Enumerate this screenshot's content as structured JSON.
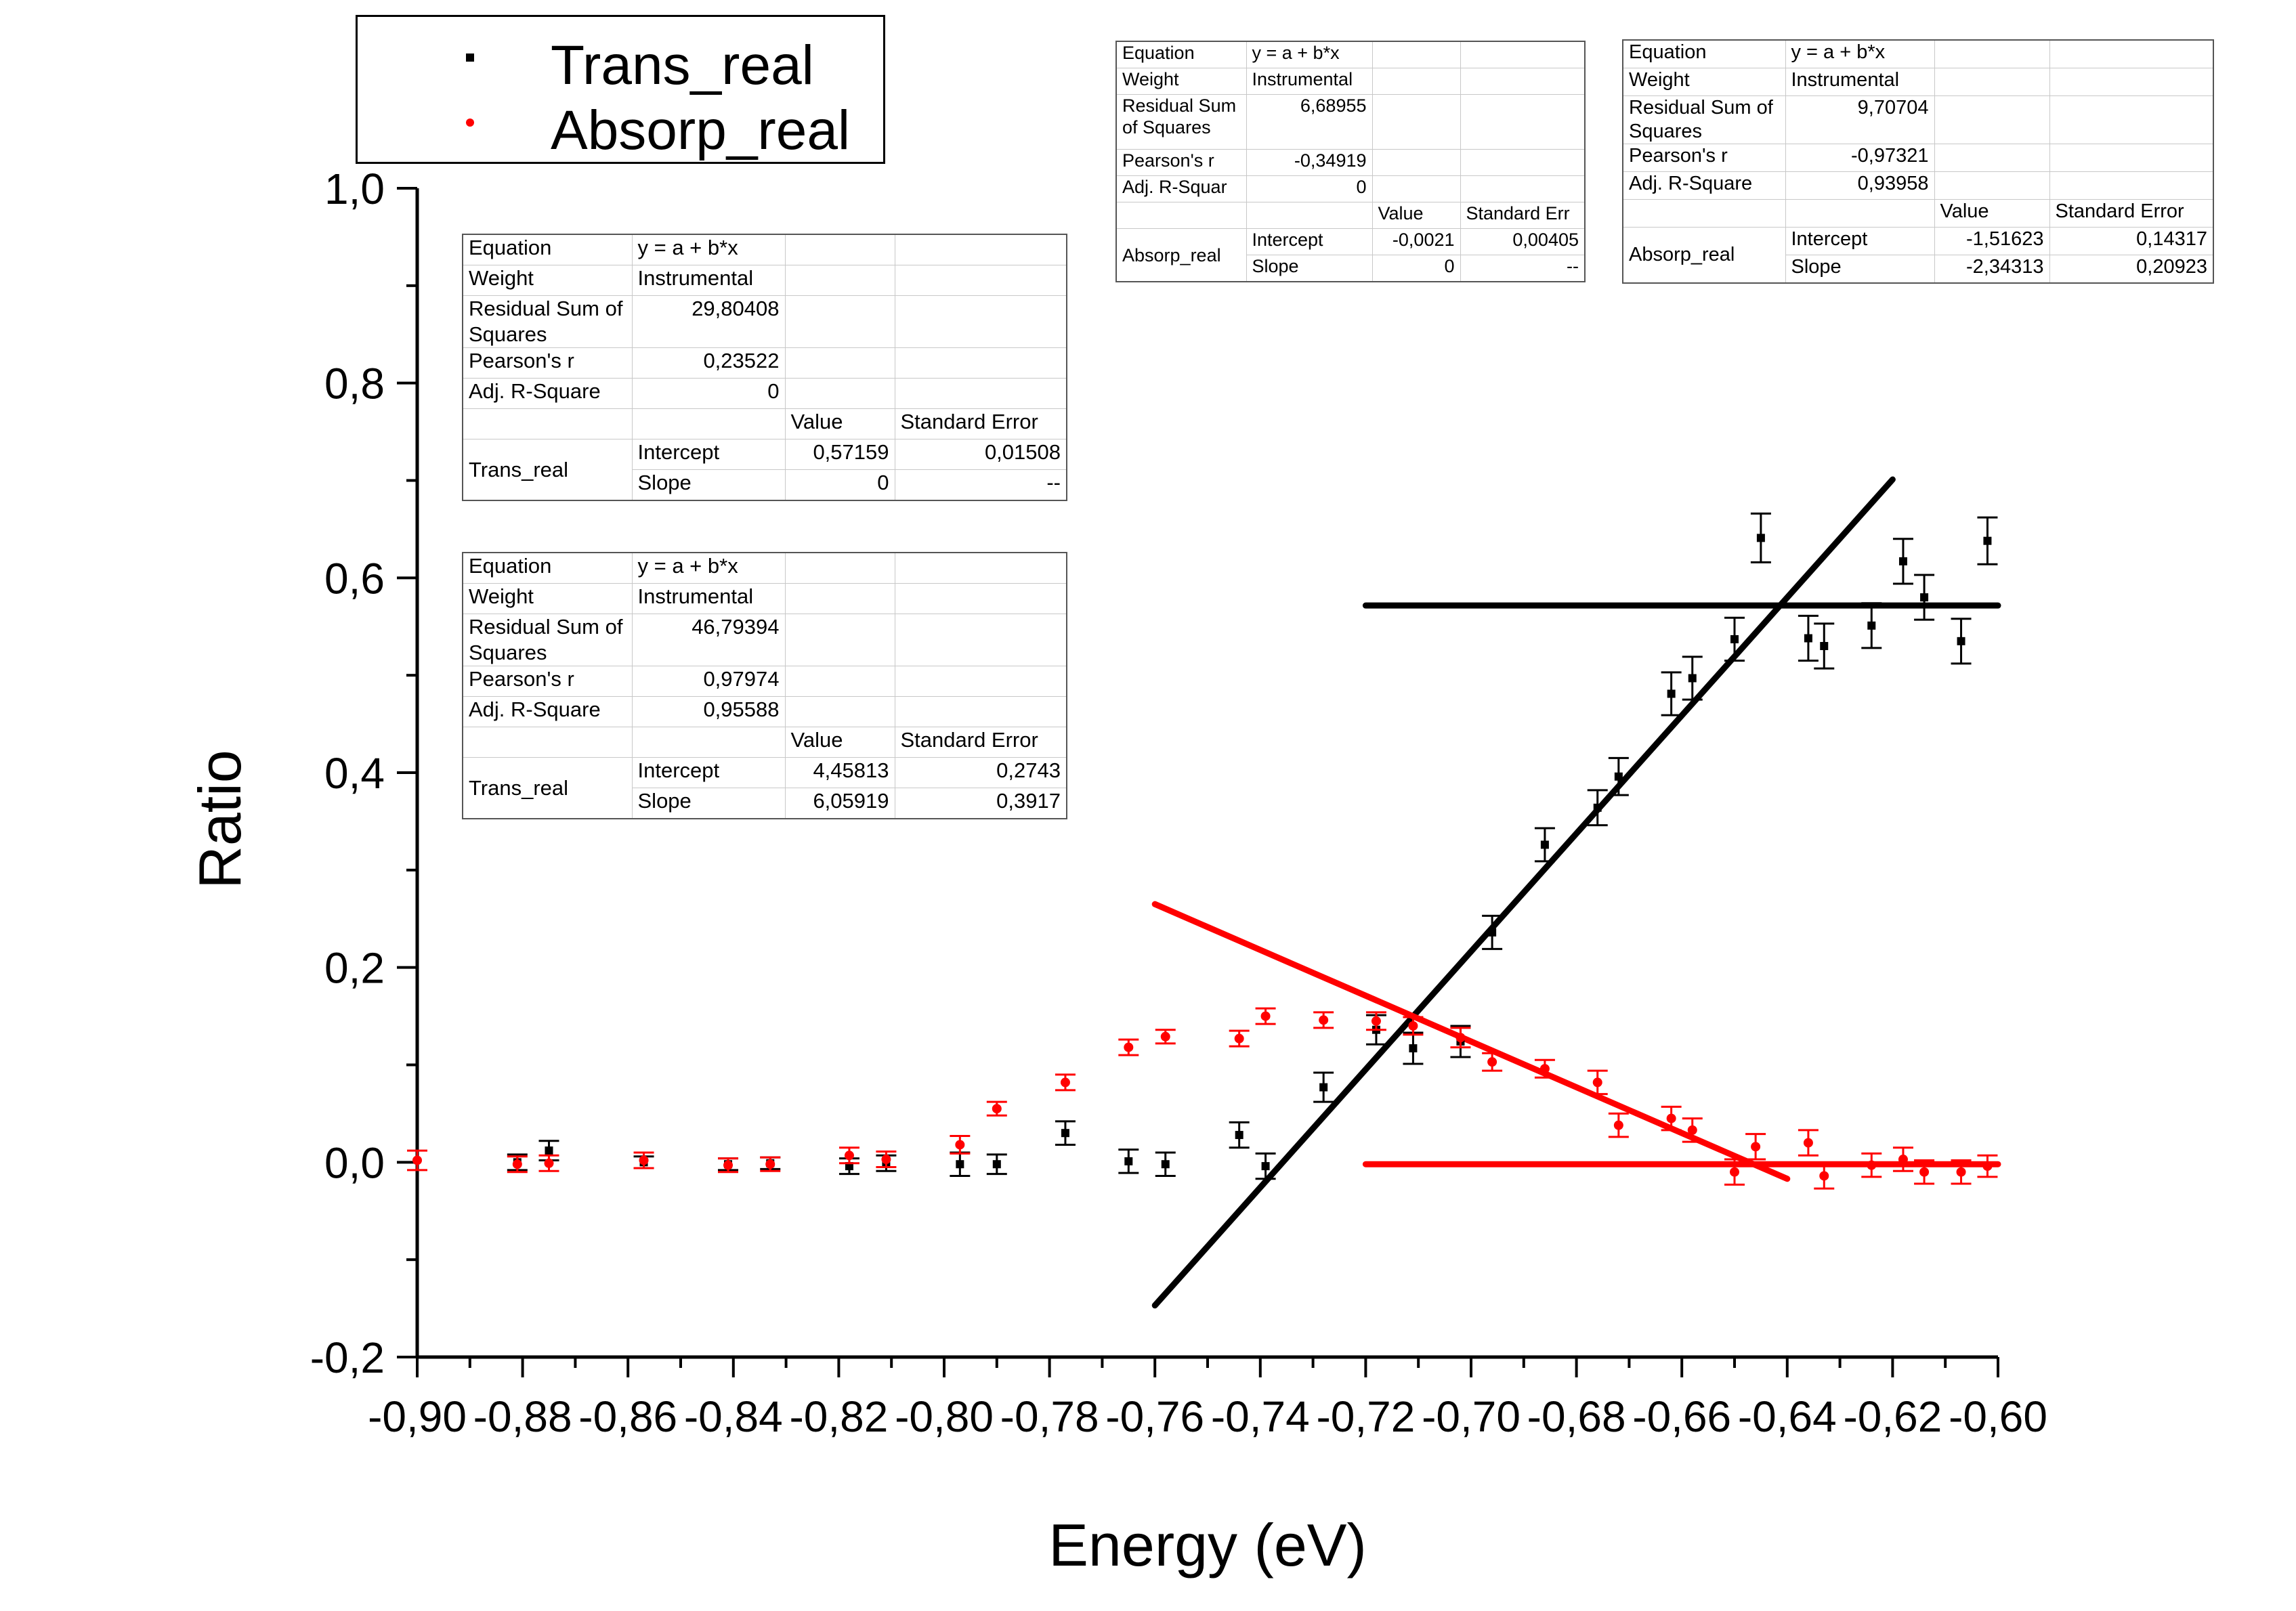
{
  "chart_data": {
    "type": "scatter",
    "title": "",
    "xlabel": "Energy (eV)",
    "ylabel": "Ratio",
    "xlim": [
      -0.9,
      -0.6
    ],
    "ylim": [
      -0.2,
      1.0
    ],
    "grid": false,
    "legend_position": "top-left",
    "x_tick_labels": [
      "-0,90",
      "-0,88",
      "-0,86",
      "-0,84",
      "-0,82",
      "-0,80",
      "-0,78",
      "-0,76",
      "-0,74",
      "-0,72",
      "-0,70",
      "-0,68",
      "-0,66",
      "-0,64",
      "-0,62",
      "-0,60"
    ],
    "y_tick_labels": [
      "-0,2",
      "0,0",
      "0,2",
      "0,4",
      "0,6",
      "0,8",
      "1,0"
    ],
    "series": [
      {
        "name": "Trans_real",
        "color": "#000000",
        "marker": "square",
        "points": [
          {
            "x": -0.881,
            "y": 0.0,
            "err": 0.008
          },
          {
            "x": -0.875,
            "y": 0.012,
            "err": 0.01
          },
          {
            "x": -0.857,
            "y": 0.0,
            "err": 0.006
          },
          {
            "x": -0.841,
            "y": -0.002,
            "err": 0.006
          },
          {
            "x": -0.833,
            "y": -0.001,
            "err": 0.006
          },
          {
            "x": -0.818,
            "y": -0.004,
            "err": 0.008
          },
          {
            "x": -0.811,
            "y": -0.001,
            "err": 0.008
          },
          {
            "x": -0.797,
            "y": -0.002,
            "err": 0.012
          },
          {
            "x": -0.79,
            "y": -0.002,
            "err": 0.01
          },
          {
            "x": -0.777,
            "y": 0.03,
            "err": 0.012
          },
          {
            "x": -0.765,
            "y": 0.001,
            "err": 0.012
          },
          {
            "x": -0.758,
            "y": -0.002,
            "err": 0.012
          },
          {
            "x": -0.744,
            "y": 0.028,
            "err": 0.013
          },
          {
            "x": -0.739,
            "y": -0.004,
            "err": 0.013
          },
          {
            "x": -0.728,
            "y": 0.077,
            "err": 0.015
          },
          {
            "x": -0.718,
            "y": 0.136,
            "err": 0.015
          },
          {
            "x": -0.711,
            "y": 0.117,
            "err": 0.016
          },
          {
            "x": -0.702,
            "y": 0.124,
            "err": 0.016
          },
          {
            "x": -0.696,
            "y": 0.236,
            "err": 0.017
          },
          {
            "x": -0.686,
            "y": 0.326,
            "err": 0.017
          },
          {
            "x": -0.676,
            "y": 0.364,
            "err": 0.018
          },
          {
            "x": -0.672,
            "y": 0.396,
            "err": 0.019
          },
          {
            "x": -0.662,
            "y": 0.481,
            "err": 0.022
          },
          {
            "x": -0.658,
            "y": 0.497,
            "err": 0.022
          },
          {
            "x": -0.65,
            "y": 0.537,
            "err": 0.022
          },
          {
            "x": -0.645,
            "y": 0.641,
            "err": 0.025
          },
          {
            "x": -0.636,
            "y": 0.538,
            "err": 0.023
          },
          {
            "x": -0.633,
            "y": 0.53,
            "err": 0.023
          },
          {
            "x": -0.624,
            "y": 0.551,
            "err": 0.023
          },
          {
            "x": -0.618,
            "y": 0.617,
            "err": 0.023
          },
          {
            "x": -0.614,
            "y": 0.58,
            "err": 0.023
          },
          {
            "x": -0.607,
            "y": 0.535,
            "err": 0.023
          },
          {
            "x": -0.602,
            "y": 0.638,
            "err": 0.024
          }
        ]
      },
      {
        "name": "Absorp_real",
        "color": "#ff0000",
        "marker": "circle",
        "points": [
          {
            "x": -0.9,
            "y": 0.002,
            "err": 0.01
          },
          {
            "x": -0.881,
            "y": -0.002,
            "err": 0.008
          },
          {
            "x": -0.875,
            "y": -0.001,
            "err": 0.008
          },
          {
            "x": -0.857,
            "y": 0.002,
            "err": 0.008
          },
          {
            "x": -0.841,
            "y": -0.003,
            "err": 0.007
          },
          {
            "x": -0.833,
            "y": -0.002,
            "err": 0.007
          },
          {
            "x": -0.818,
            "y": 0.007,
            "err": 0.008
          },
          {
            "x": -0.811,
            "y": 0.003,
            "err": 0.008
          },
          {
            "x": -0.797,
            "y": 0.018,
            "err": 0.009
          },
          {
            "x": -0.79,
            "y": 0.055,
            "err": 0.007
          },
          {
            "x": -0.777,
            "y": 0.082,
            "err": 0.008
          },
          {
            "x": -0.765,
            "y": 0.118,
            "err": 0.008
          },
          {
            "x": -0.758,
            "y": 0.129,
            "err": 0.007
          },
          {
            "x": -0.744,
            "y": 0.127,
            "err": 0.008
          },
          {
            "x": -0.739,
            "y": 0.15,
            "err": 0.008
          },
          {
            "x": -0.728,
            "y": 0.146,
            "err": 0.008
          },
          {
            "x": -0.718,
            "y": 0.145,
            "err": 0.009
          },
          {
            "x": -0.711,
            "y": 0.14,
            "err": 0.009
          },
          {
            "x": -0.702,
            "y": 0.128,
            "err": 0.01
          },
          {
            "x": -0.696,
            "y": 0.103,
            "err": 0.009
          },
          {
            "x": -0.686,
            "y": 0.096,
            "err": 0.009
          },
          {
            "x": -0.676,
            "y": 0.082,
            "err": 0.012
          },
          {
            "x": -0.672,
            "y": 0.038,
            "err": 0.012
          },
          {
            "x": -0.662,
            "y": 0.045,
            "err": 0.012
          },
          {
            "x": -0.658,
            "y": 0.033,
            "err": 0.012
          },
          {
            "x": -0.65,
            "y": -0.01,
            "err": 0.013
          },
          {
            "x": -0.646,
            "y": 0.016,
            "err": 0.013
          },
          {
            "x": -0.636,
            "y": 0.02,
            "err": 0.013
          },
          {
            "x": -0.633,
            "y": -0.014,
            "err": 0.013
          },
          {
            "x": -0.624,
            "y": -0.003,
            "err": 0.012
          },
          {
            "x": -0.618,
            "y": 0.003,
            "err": 0.012
          },
          {
            "x": -0.614,
            "y": -0.01,
            "err": 0.012
          },
          {
            "x": -0.607,
            "y": -0.01,
            "err": 0.012
          },
          {
            "x": -0.602,
            "y": -0.004,
            "err": 0.011
          }
        ]
      }
    ],
    "fit_lines": [
      {
        "series": "Trans_real",
        "color": "#000000",
        "x": [
          -0.72,
          -0.6
        ],
        "y": [
          0.5716,
          0.5716
        ]
      },
      {
        "series": "Trans_real",
        "color": "#000000",
        "x": [
          -0.76,
          -0.62
        ],
        "y": [
          -0.147,
          0.701
        ]
      },
      {
        "series": "Absorp_real",
        "color": "#ff0000",
        "x": [
          -0.72,
          -0.6
        ],
        "y": [
          -0.002,
          -0.002
        ]
      },
      {
        "series": "Absorp_real",
        "color": "#ff0000",
        "x": [
          -0.76,
          -0.64
        ],
        "y": [
          0.265,
          -0.017
        ]
      }
    ]
  },
  "fit_tables": {
    "trans_flat": {
      "equation_label": "Equation",
      "equation": "y = a + b*x",
      "weight_label": "Weight",
      "weight": "Instrumental",
      "rss_label": "Residual Sum of Squares",
      "rss": "29,80408",
      "pearson_label": "Pearson's r",
      "pearson": "0,23522",
      "adjr_label": "Adj. R-Square",
      "adjr": "0",
      "value_header": "Value",
      "stderr_header": "Standard Error",
      "series_name": "Trans_real",
      "intercept_label": "Intercept",
      "intercept_value": "0,57159",
      "intercept_error": "0,01508",
      "slope_label": "Slope",
      "slope_value": "0",
      "slope_error": "--"
    },
    "trans_linear": {
      "equation_label": "Equation",
      "equation": "y = a + b*x",
      "weight_label": "Weight",
      "weight": "Instrumental",
      "rss_label": "Residual Sum of Squares",
      "rss": "46,79394",
      "pearson_label": "Pearson's r",
      "pearson": "0,97974",
      "adjr_label": "Adj. R-Square",
      "adjr": "0,95588",
      "value_header": "Value",
      "stderr_header": "Standard Error",
      "series_name": "Trans_real",
      "intercept_label": "Intercept",
      "intercept_value": "4,45813",
      "intercept_error": "0,2743",
      "slope_label": "Slope",
      "slope_value": "6,05919",
      "slope_error": "0,3917"
    },
    "abs_flat": {
      "equation_label": "Equation",
      "equation": "y = a + b*x",
      "weight_label": "Weight",
      "weight": "Instrumental",
      "rss_label": "Residual Sum of Squares",
      "rss": "6,68955",
      "pearson_label": "Pearson's r",
      "pearson": "-0,34919",
      "adjr_label": "Adj. R-Squar",
      "adjr": "0",
      "value_header": "Value",
      "stderr_header": "Standard Err",
      "series_name": "Absorp_real",
      "intercept_label": "Intercept",
      "intercept_value": "-0,0021",
      "intercept_error": "0,00405",
      "slope_label": "Slope",
      "slope_value": "0",
      "slope_error": "--"
    },
    "abs_linear": {
      "equation_label": "Equation",
      "equation": "y = a + b*x",
      "weight_label": "Weight",
      "weight": "Instrumental",
      "rss_label": "Residual Sum of Squares",
      "rss": "9,70704",
      "pearson_label": "Pearson's r",
      "pearson": "-0,97321",
      "adjr_label": "Adj. R-Square",
      "adjr": "0,93958",
      "value_header": "Value",
      "stderr_header": "Standard Error",
      "series_name": "Absorp_real",
      "intercept_label": "Intercept",
      "intercept_value": "-1,51623",
      "intercept_error": "0,14317",
      "slope_label": "Slope",
      "slope_value": "-2,34313",
      "slope_error": "0,20923"
    }
  }
}
